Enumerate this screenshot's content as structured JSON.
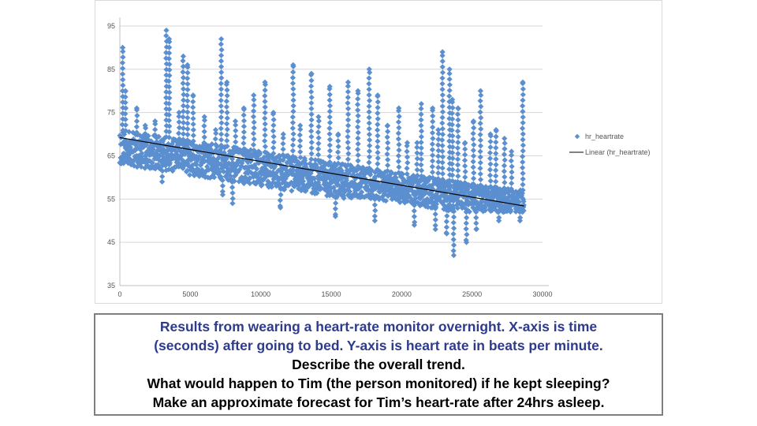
{
  "chart_data": {
    "type": "scatter",
    "x_ticks": [
      0,
      5000,
      10000,
      15000,
      20000,
      25000,
      30000
    ],
    "y_ticks": [
      35,
      45,
      55,
      65,
      75,
      85,
      95
    ],
    "xlim": [
      0,
      30000
    ],
    "ylim": [
      35,
      97
    ],
    "grid": {
      "horizontal": true,
      "vertical": false
    },
    "legend_position": "right",
    "series": [
      {
        "name": "hr_heartrate",
        "kind": "points",
        "color": "#5b8fcf",
        "band": [
          [
            0,
            63,
            71
          ],
          [
            2000,
            62,
            70
          ],
          [
            4000,
            61,
            69
          ],
          [
            6000,
            60,
            68
          ],
          [
            8000,
            59,
            67
          ],
          [
            10000,
            58,
            66
          ],
          [
            12000,
            57,
            65
          ],
          [
            14000,
            56,
            64
          ],
          [
            16000,
            55,
            63
          ],
          [
            18000,
            55,
            62
          ],
          [
            20000,
            54,
            61
          ],
          [
            22000,
            53,
            60
          ],
          [
            24000,
            52,
            59
          ],
          [
            26000,
            52,
            58
          ],
          [
            28700,
            52,
            57
          ]
        ],
        "spikes": [
          [
            200,
            90
          ],
          [
            400,
            80
          ],
          [
            1200,
            76
          ],
          [
            1800,
            72
          ],
          [
            2500,
            73
          ],
          [
            3300,
            94
          ],
          [
            3500,
            92
          ],
          [
            4200,
            75
          ],
          [
            4500,
            88
          ],
          [
            4800,
            86
          ],
          [
            5200,
            79
          ],
          [
            6000,
            74
          ],
          [
            6800,
            71
          ],
          [
            7200,
            92
          ],
          [
            7600,
            82
          ],
          [
            8200,
            73
          ],
          [
            8800,
            76
          ],
          [
            9500,
            79
          ],
          [
            10300,
            82
          ],
          [
            10900,
            75
          ],
          [
            11600,
            70
          ],
          [
            12300,
            86
          ],
          [
            12800,
            72
          ],
          [
            13600,
            84
          ],
          [
            14100,
            74
          ],
          [
            14900,
            81
          ],
          [
            15500,
            70
          ],
          [
            16200,
            82
          ],
          [
            16900,
            80
          ],
          [
            17700,
            85
          ],
          [
            18300,
            79
          ],
          [
            19000,
            72
          ],
          [
            19800,
            76
          ],
          [
            20400,
            68
          ],
          [
            21100,
            68
          ],
          [
            21400,
            77
          ],
          [
            22200,
            76
          ],
          [
            22600,
            71
          ],
          [
            22900,
            89
          ],
          [
            23400,
            85
          ],
          [
            23600,
            78
          ],
          [
            24000,
            76
          ],
          [
            24500,
            68
          ],
          [
            25100,
            73
          ],
          [
            25600,
            80
          ],
          [
            26300,
            70
          ],
          [
            26700,
            71
          ],
          [
            27300,
            69
          ],
          [
            27800,
            66
          ],
          [
            28600,
            82
          ]
        ],
        "dips": [
          [
            3000,
            59
          ],
          [
            7300,
            56
          ],
          [
            8000,
            54
          ],
          [
            11400,
            53
          ],
          [
            15300,
            51
          ],
          [
            18100,
            50
          ],
          [
            20900,
            49
          ],
          [
            22400,
            48
          ],
          [
            23200,
            47
          ],
          [
            23700,
            42
          ],
          [
            24600,
            45
          ],
          [
            25300,
            48
          ],
          [
            26900,
            50
          ],
          [
            28400,
            50
          ]
        ]
      },
      {
        "name": "Linear (hr_heartrate)",
        "kind": "trendline",
        "color": "#000000",
        "x": [
          0,
          28700
        ],
        "y": [
          69.2,
          53.4
        ]
      }
    ]
  },
  "caption": {
    "lines": [
      "Results from wearing a heart-rate monitor overnight.  X-axis is time",
      "(seconds) after going to bed.  Y-axis is heart rate in beats per minute.",
      "Describe the overall trend.",
      "What would happen to Tim (the person monitored) if he kept sleeping?",
      "Make an approximate forecast for Tim’s heart-rate after 24hrs asleep."
    ]
  }
}
